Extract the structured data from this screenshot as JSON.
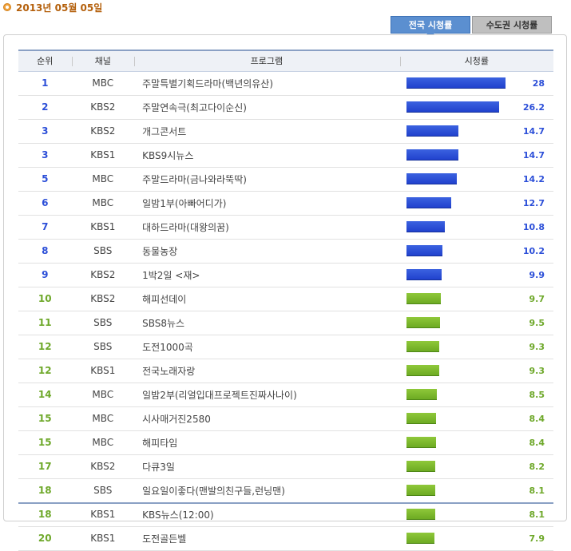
{
  "date_header": {
    "text": "2013년 05월 05일"
  },
  "tabs": [
    {
      "label": "전국 시청률",
      "active": true
    },
    {
      "label": "수도권 시청률",
      "active": false
    }
  ],
  "table": {
    "columns": {
      "rank": "순위",
      "channel": "채널",
      "program": "프로그램",
      "rating": "시청률"
    },
    "rows": [
      {
        "rank": "1",
        "channel": "MBC",
        "program": "주말특별기획드라마(백년의유산)",
        "rating": "28",
        "fill": 28,
        "color": "blue"
      },
      {
        "rank": "2",
        "channel": "KBS2",
        "program": "주말연속극(최고다이순신)",
        "rating": "26.2",
        "fill": 26.2,
        "color": "blue"
      },
      {
        "rank": "3",
        "channel": "KBS2",
        "program": "개그콘서트",
        "rating": "14.7",
        "fill": 14.7,
        "color": "blue"
      },
      {
        "rank": "3",
        "channel": "KBS1",
        "program": "KBS9시뉴스",
        "rating": "14.7",
        "fill": 14.7,
        "color": "blue"
      },
      {
        "rank": "5",
        "channel": "MBC",
        "program": "주말드라마(금나와라뚝딱)",
        "rating": "14.2",
        "fill": 14.2,
        "color": "blue"
      },
      {
        "rank": "6",
        "channel": "MBC",
        "program": "일밤1부(아빠어디가)",
        "rating": "12.7",
        "fill": 12.7,
        "color": "blue"
      },
      {
        "rank": "7",
        "channel": "KBS1",
        "program": "대하드라마(대왕의꿈)",
        "rating": "10.8",
        "fill": 10.8,
        "color": "blue"
      },
      {
        "rank": "8",
        "channel": "SBS",
        "program": "동물농장",
        "rating": "10.2",
        "fill": 10.2,
        "color": "blue"
      },
      {
        "rank": "9",
        "channel": "KBS2",
        "program": "1박2일 <재>",
        "rating": "9.9",
        "fill": 9.9,
        "color": "blue"
      },
      {
        "rank": "10",
        "channel": "KBS2",
        "program": "해피선데이",
        "rating": "9.7",
        "fill": 9.7,
        "color": "green"
      },
      {
        "rank": "11",
        "channel": "SBS",
        "program": "SBS8뉴스",
        "rating": "9.5",
        "fill": 9.5,
        "color": "green"
      },
      {
        "rank": "12",
        "channel": "SBS",
        "program": "도전1000곡",
        "rating": "9.3",
        "fill": 9.3,
        "color": "green"
      },
      {
        "rank": "12",
        "channel": "KBS1",
        "program": "전국노래자랑",
        "rating": "9.3",
        "fill": 9.3,
        "color": "green"
      },
      {
        "rank": "14",
        "channel": "MBC",
        "program": "일밤2부(리얼입대프로젝트진짜사나이)",
        "rating": "8.5",
        "fill": 8.5,
        "color": "green"
      },
      {
        "rank": "15",
        "channel": "MBC",
        "program": "시사매거진2580",
        "rating": "8.4",
        "fill": 8.4,
        "color": "green"
      },
      {
        "rank": "15",
        "channel": "MBC",
        "program": "해피타임",
        "rating": "8.4",
        "fill": 8.4,
        "color": "green"
      },
      {
        "rank": "17",
        "channel": "KBS2",
        "program": "다큐3일",
        "rating": "8.2",
        "fill": 8.2,
        "color": "green"
      },
      {
        "rank": "18",
        "channel": "SBS",
        "program": "일요일이좋다(맨발의친구들,런닝맨)",
        "rating": "8.1",
        "fill": 8.1,
        "color": "green"
      },
      {
        "rank": "18",
        "channel": "KBS1",
        "program": "KBS뉴스(12:00)",
        "rating": "8.1",
        "fill": 8.1,
        "color": "green"
      },
      {
        "rank": "20",
        "channel": "KBS1",
        "program": "도전골든벨",
        "rating": "7.9",
        "fill": 7.9,
        "color": "green"
      }
    ]
  },
  "colors": {
    "blue_bar": "#2747d6",
    "green_bar": "#78b52b",
    "blue_text": "#2c4fd8",
    "green_text": "#6ea82a",
    "date_text": "#b4600c"
  }
}
